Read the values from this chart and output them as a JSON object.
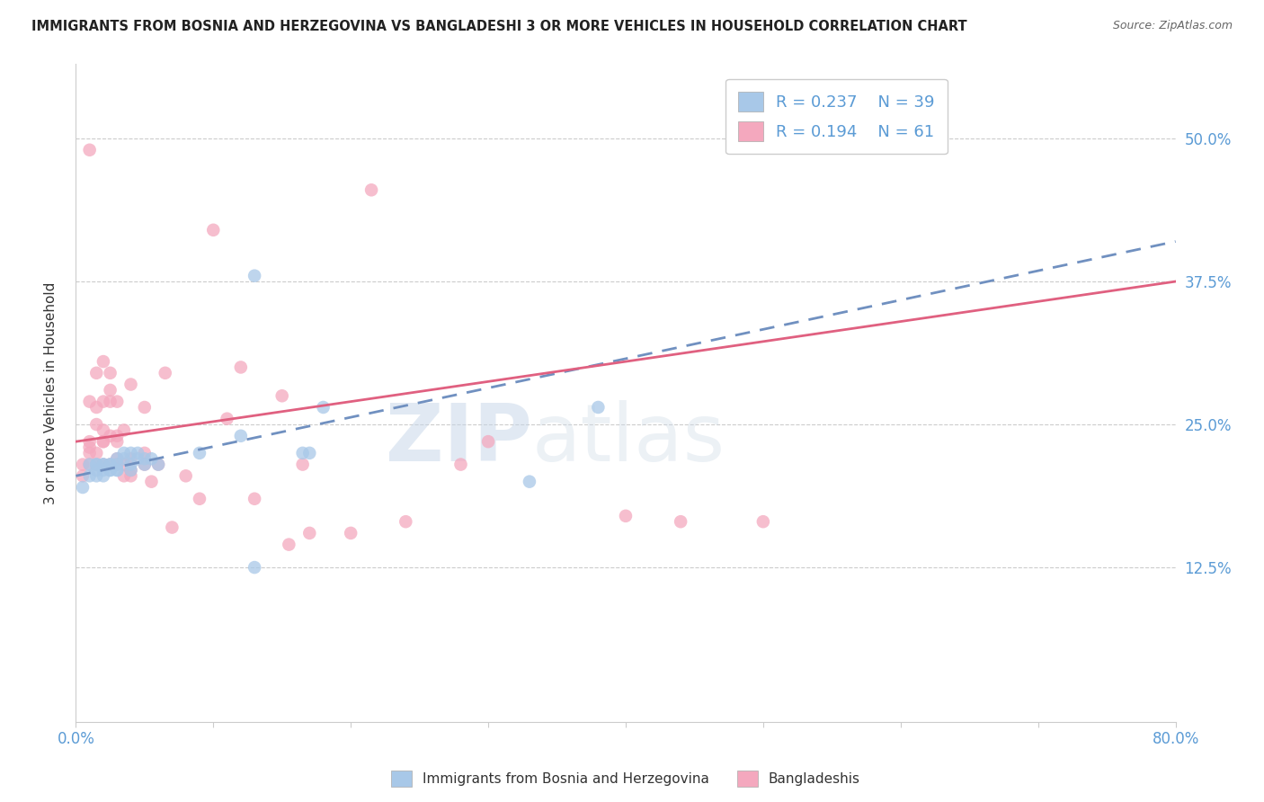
{
  "title": "IMMIGRANTS FROM BOSNIA AND HERZEGOVINA VS BANGLADESHI 3 OR MORE VEHICLES IN HOUSEHOLD CORRELATION CHART",
  "source": "Source: ZipAtlas.com",
  "ylabel": "3 or more Vehicles in Household",
  "ytick_labels": [
    "12.5%",
    "25.0%",
    "37.5%",
    "50.0%"
  ],
  "ytick_values": [
    0.125,
    0.25,
    0.375,
    0.5
  ],
  "xlim": [
    0.0,
    0.8
  ],
  "ylim": [
    -0.01,
    0.565
  ],
  "legend_R_blue": "R = 0.237",
  "legend_N_blue": "N = 39",
  "legend_R_pink": "R = 0.194",
  "legend_N_pink": "N = 61",
  "legend_label_blue": "Immigrants from Bosnia and Herzegovina",
  "legend_label_pink": "Bangladeshis",
  "blue_color": "#a8c8e8",
  "pink_color": "#f4a8be",
  "blue_line_color": "#7090c0",
  "pink_line_color": "#e06080",
  "watermark_zip": "ZIP",
  "watermark_atlas": "atlas",
  "blue_scatter_x": [
    0.005,
    0.01,
    0.01,
    0.015,
    0.015,
    0.015,
    0.015,
    0.02,
    0.02,
    0.02,
    0.02,
    0.025,
    0.025,
    0.025,
    0.025,
    0.03,
    0.03,
    0.03,
    0.03,
    0.035,
    0.035,
    0.04,
    0.04,
    0.04,
    0.045,
    0.045,
    0.05,
    0.05,
    0.055,
    0.06,
    0.09,
    0.12,
    0.13,
    0.13,
    0.165,
    0.17,
    0.18,
    0.33,
    0.38
  ],
  "blue_scatter_y": [
    0.195,
    0.205,
    0.215,
    0.21,
    0.215,
    0.215,
    0.205,
    0.21,
    0.215,
    0.215,
    0.205,
    0.21,
    0.215,
    0.21,
    0.215,
    0.215,
    0.21,
    0.22,
    0.21,
    0.225,
    0.22,
    0.225,
    0.215,
    0.21,
    0.225,
    0.22,
    0.22,
    0.215,
    0.22,
    0.215,
    0.225,
    0.24,
    0.38,
    0.125,
    0.225,
    0.225,
    0.265,
    0.2,
    0.265
  ],
  "pink_scatter_x": [
    0.005,
    0.005,
    0.01,
    0.01,
    0.01,
    0.01,
    0.01,
    0.01,
    0.015,
    0.015,
    0.015,
    0.015,
    0.015,
    0.02,
    0.02,
    0.02,
    0.02,
    0.02,
    0.02,
    0.025,
    0.025,
    0.025,
    0.025,
    0.025,
    0.03,
    0.03,
    0.03,
    0.03,
    0.03,
    0.035,
    0.035,
    0.035,
    0.04,
    0.04,
    0.04,
    0.04,
    0.05,
    0.05,
    0.05,
    0.055,
    0.06,
    0.065,
    0.07,
    0.08,
    0.09,
    0.1,
    0.11,
    0.12,
    0.13,
    0.15,
    0.155,
    0.165,
    0.17,
    0.2,
    0.215,
    0.24,
    0.28,
    0.3,
    0.4,
    0.44,
    0.5
  ],
  "pink_scatter_y": [
    0.205,
    0.215,
    0.215,
    0.225,
    0.23,
    0.235,
    0.27,
    0.49,
    0.215,
    0.225,
    0.25,
    0.265,
    0.295,
    0.215,
    0.235,
    0.245,
    0.27,
    0.305,
    0.235,
    0.24,
    0.215,
    0.27,
    0.28,
    0.295,
    0.215,
    0.22,
    0.235,
    0.27,
    0.24,
    0.205,
    0.215,
    0.245,
    0.205,
    0.22,
    0.285,
    0.21,
    0.225,
    0.215,
    0.265,
    0.2,
    0.215,
    0.295,
    0.16,
    0.205,
    0.185,
    0.42,
    0.255,
    0.3,
    0.185,
    0.275,
    0.145,
    0.215,
    0.155,
    0.155,
    0.455,
    0.165,
    0.215,
    0.235,
    0.17,
    0.165,
    0.165
  ],
  "blue_trend_x": [
    0.0,
    0.8
  ],
  "blue_trend_y_start": 0.205,
  "blue_trend_y_end": 0.41,
  "pink_trend_x": [
    0.0,
    0.8
  ],
  "pink_trend_y_start": 0.235,
  "pink_trend_y_end": 0.375,
  "grid_color": "#cccccc",
  "right_tick_color": "#5b9bd5",
  "xtick_color": "#5b9bd5"
}
